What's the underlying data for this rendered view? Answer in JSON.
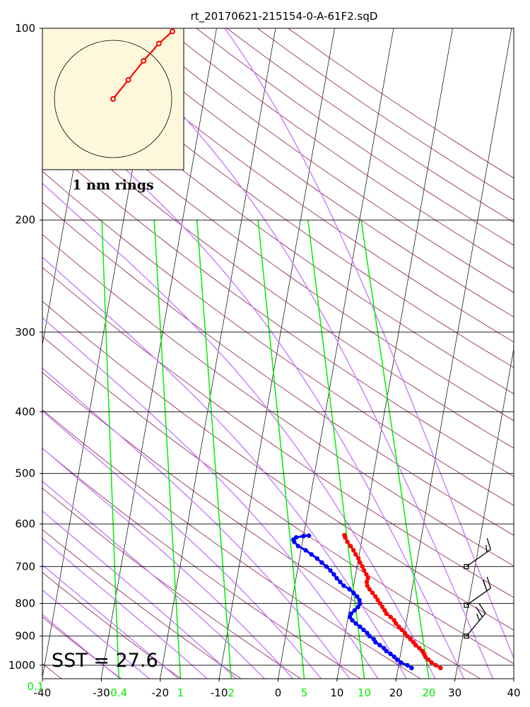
{
  "title": "rt_20170621-215154-0-A-61F2.sqD",
  "hodograph_label": "1 nm rings",
  "sst_label": "SST = 27.6",
  "colors": {
    "temperature": "#ff0000",
    "dewpoint": "#0000ff",
    "dry_adiabat": "#8b1a4a",
    "moist_adiabat": "#c77dff",
    "mixing_ratio": "#00ee00",
    "isotherm": "#000000",
    "hodo_bg": "#fdf8dc"
  },
  "chart_data": {
    "type": "skew-t log-p diagram",
    "x_ticks": [
      "-40",
      "-30",
      "-20",
      "-10",
      "0",
      "10",
      "20",
      "30",
      "40"
    ],
    "x_tick_values": [
      -40,
      -30,
      -20,
      -10,
      0,
      10,
      20,
      30,
      40
    ],
    "y_ticks": [
      "100",
      "200",
      "300",
      "400",
      "500",
      "600",
      "700",
      "800",
      "900",
      "1000"
    ],
    "y_tick_values": [
      100,
      200,
      300,
      400,
      500,
      600,
      700,
      800,
      900,
      1000
    ],
    "mixing_ratio_ticks": [
      "0.1",
      "0.4",
      "1",
      "2",
      "5",
      "10",
      "20"
    ],
    "mixing_ratio_values": [
      0.1,
      0.4,
      1,
      2,
      5,
      10,
      20
    ],
    "temperature_range": [
      -40,
      40
    ],
    "pressure_range": [
      1050,
      100
    ],
    "temperature_profile": [
      [
        1010,
        27.2
      ],
      [
        1000,
        26.3
      ],
      [
        990,
        25.5
      ],
      [
        980,
        24.9
      ],
      [
        970,
        24.3
      ],
      [
        960,
        24.0
      ],
      [
        950,
        23.6
      ],
      [
        940,
        23.0
      ],
      [
        930,
        22.3
      ],
      [
        920,
        21.8
      ],
      [
        910,
        21.2
      ],
      [
        900,
        20.6
      ],
      [
        890,
        20.1
      ],
      [
        880,
        19.5
      ],
      [
        870,
        18.9
      ],
      [
        860,
        18.3
      ],
      [
        850,
        17.9
      ],
      [
        840,
        17.2
      ],
      [
        830,
        16.4
      ],
      [
        820,
        16.0
      ],
      [
        810,
        15.5
      ],
      [
        800,
        15.0
      ],
      [
        790,
        14.5
      ],
      [
        780,
        14.0
      ],
      [
        770,
        13.4
      ],
      [
        760,
        12.8
      ],
      [
        750,
        12.3
      ],
      [
        740,
        12.1
      ],
      [
        730,
        12.2
      ],
      [
        720,
        11.8
      ],
      [
        710,
        11.3
      ],
      [
        700,
        10.9
      ],
      [
        690,
        10.4
      ],
      [
        680,
        10.0
      ],
      [
        670,
        9.4
      ],
      [
        660,
        8.9
      ],
      [
        650,
        8.3
      ],
      [
        640,
        7.6
      ],
      [
        630,
        7.1
      ],
      [
        625,
        6.9
      ]
    ],
    "dewpoint_profile": [
      [
        1010,
        22.3
      ],
      [
        1000,
        21.5
      ],
      [
        990,
        20.3
      ],
      [
        980,
        19.6
      ],
      [
        970,
        19.0
      ],
      [
        960,
        18.3
      ],
      [
        950,
        17.5
      ],
      [
        940,
        17.0
      ],
      [
        930,
        16.2
      ],
      [
        920,
        15.4
      ],
      [
        910,
        15.0
      ],
      [
        900,
        14.2
      ],
      [
        890,
        13.7
      ],
      [
        880,
        13.0
      ],
      [
        870,
        12.3
      ],
      [
        860,
        11.5
      ],
      [
        850,
        10.8
      ],
      [
        840,
        10.3
      ],
      [
        830,
        10.4
      ],
      [
        820,
        10.9
      ],
      [
        810,
        11.4
      ],
      [
        800,
        11.6
      ],
      [
        790,
        11.4
      ],
      [
        780,
        10.9
      ],
      [
        770,
        10.2
      ],
      [
        760,
        9.4
      ],
      [
        750,
        8.3
      ],
      [
        740,
        7.6
      ],
      [
        730,
        6.9
      ],
      [
        720,
        6.3
      ],
      [
        710,
        5.6
      ],
      [
        700,
        4.8
      ],
      [
        690,
        3.9
      ],
      [
        680,
        3.0
      ],
      [
        670,
        1.9
      ],
      [
        660,
        0.8
      ],
      [
        650,
        -0.6
      ],
      [
        640,
        -1.4
      ],
      [
        635,
        -1.6
      ],
      [
        630,
        -1.2
      ],
      [
        627,
        0.0
      ],
      [
        626,
        0.9
      ]
    ],
    "wind_barbs": [
      {
        "pressure": 700,
        "direction_deg": 235,
        "speed_kt": 15
      },
      {
        "pressure": 805,
        "direction_deg": 235,
        "speed_kt": 20
      },
      {
        "pressure": 900,
        "direction_deg": 220,
        "speed_kt": 25
      }
    ],
    "hodograph_points": [
      [
        0,
        0
      ],
      [
        0.45,
        0.55
      ],
      [
        0.9,
        1.1
      ],
      [
        1.35,
        1.6
      ],
      [
        1.75,
        1.95
      ]
    ]
  }
}
